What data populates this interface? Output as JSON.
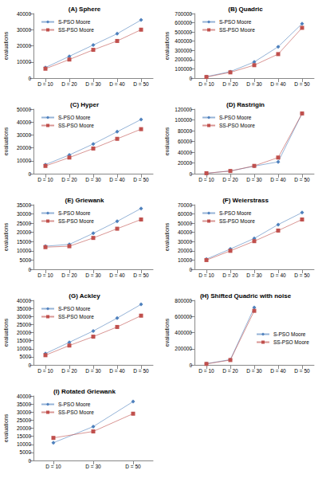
{
  "chart_data": [
    {
      "type": "line",
      "title": "(A) Sphere",
      "ylabel": "evaluations",
      "categories": [
        "D = 10",
        "D = 20",
        "D = 30",
        "D = 40",
        "D = 50"
      ],
      "series": [
        {
          "name": "S-PSO Moore",
          "color": "#4f81bd",
          "marker": "diamond",
          "line_style": "solid",
          "values": [
            6500,
            13500,
            20500,
            27500,
            36000
          ]
        },
        {
          "name": "SS-PSO Moore",
          "color": "#c0504d",
          "marker": "square",
          "line_style": "solid",
          "values": [
            5800,
            11500,
            17500,
            23000,
            30000
          ]
        }
      ],
      "ylim": [
        0,
        40000
      ],
      "yticks": [
        0,
        10000,
        20000,
        30000,
        40000
      ],
      "grid": false,
      "legend": "upper left"
    },
    {
      "type": "line",
      "title": "(B) Quadric",
      "ylabel": "evaluations",
      "categories": [
        "D = 10",
        "D = 20",
        "D = 30",
        "D = 40",
        "D = 50"
      ],
      "series": [
        {
          "name": "S-PSO Moore",
          "color": "#4f81bd",
          "marker": "diamond",
          "line_style": "solid",
          "values": [
            15000,
            70000,
            175000,
            340000,
            590000
          ]
        },
        {
          "name": "SS-PSO Moore",
          "color": "#c0504d",
          "marker": "square",
          "line_style": "solid",
          "values": [
            12000,
            62000,
            140000,
            260000,
            545000
          ]
        }
      ],
      "ylim": [
        0,
        700000
      ],
      "yticks": [
        0,
        100000,
        200000,
        300000,
        400000,
        500000,
        600000,
        700000
      ],
      "grid": false,
      "legend": "upper left"
    },
    {
      "type": "line",
      "title": "(C) Hyper",
      "ylabel": "evaluations",
      "categories": [
        "D = 10",
        "D = 20",
        "D = 30",
        "D = 40",
        "D = 50"
      ],
      "series": [
        {
          "name": "S-PSO Moore",
          "color": "#4f81bd",
          "marker": "diamond",
          "line_style": "solid",
          "values": [
            7000,
            14500,
            23000,
            32500,
            42000
          ]
        },
        {
          "name": "SS-PSO Moore",
          "color": "#c0504d",
          "marker": "square",
          "line_style": "solid",
          "values": [
            6000,
            12500,
            19500,
            27000,
            34500
          ]
        }
      ],
      "ylim": [
        0,
        50000
      ],
      "yticks": [
        0,
        10000,
        20000,
        30000,
        40000,
        50000
      ],
      "grid": false,
      "legend": "upper left"
    },
    {
      "type": "line",
      "title": "(D) Rastrigin",
      "ylabel": "evaluations",
      "categories": [
        "D = 10",
        "D = 20",
        "D = 30",
        "D = 40",
        "D = 50"
      ],
      "series": [
        {
          "name": "S-PSO Moore",
          "color": "#4f81bd",
          "marker": "diamond",
          "line_style": "solid",
          "values": [
            800,
            5000,
            14000,
            22000,
            112000
          ]
        },
        {
          "name": "SS-PSO Moore",
          "color": "#c0504d",
          "marker": "square",
          "line_style": "solid",
          "values": [
            800,
            5000,
            14500,
            30000,
            112000
          ]
        }
      ],
      "ylim": [
        0,
        120000
      ],
      "yticks": [
        0,
        20000,
        40000,
        60000,
        80000,
        100000,
        120000
      ],
      "grid": false,
      "legend": "upper left"
    },
    {
      "type": "line",
      "title": "(E) Griewank",
      "ylabel": "evaluations",
      "categories": [
        "D = 10",
        "D = 20",
        "D = 30",
        "D = 40",
        "D = 50"
      ],
      "series": [
        {
          "name": "S-PSO Moore",
          "color": "#4f81bd",
          "marker": "diamond",
          "line_style": "solid",
          "values": [
            12500,
            13500,
            19500,
            26000,
            33000
          ]
        },
        {
          "name": "SS-PSO Moore",
          "color": "#c0504d",
          "marker": "square",
          "line_style": "solid",
          "values": [
            12000,
            12500,
            17000,
            22000,
            27000
          ]
        }
      ],
      "ylim": [
        0,
        35000
      ],
      "yticks": [
        0,
        5000,
        10000,
        15000,
        20000,
        25000,
        30000,
        35000
      ],
      "grid": false,
      "legend": "upper left"
    },
    {
      "type": "line",
      "title": "(F) Weierstrass",
      "ylabel": "evaluations",
      "categories": [
        "D = 10",
        "D = 20",
        "D = 30",
        "D = 40",
        "D = 50"
      ],
      "series": [
        {
          "name": "S-PSO Moore",
          "color": "#4f81bd",
          "marker": "diamond",
          "line_style": "solid",
          "values": [
            11000,
            22000,
            33500,
            48500,
            61500
          ]
        },
        {
          "name": "SS-PSO Moore",
          "color": "#c0504d",
          "marker": "square",
          "line_style": "solid",
          "values": [
            10000,
            20000,
            30500,
            42000,
            54000
          ]
        }
      ],
      "ylim": [
        0,
        70000
      ],
      "yticks": [
        0,
        10000,
        20000,
        30000,
        40000,
        50000,
        60000,
        70000
      ],
      "grid": false,
      "legend": "upper left"
    },
    {
      "type": "line",
      "title": "(G) Ackley",
      "ylabel": "evaluations",
      "categories": [
        "D = 10",
        "D = 20",
        "D = 30",
        "D = 40",
        "D = 50"
      ],
      "series": [
        {
          "name": "S-PSO Moore",
          "color": "#4f81bd",
          "marker": "diamond",
          "line_style": "solid",
          "values": [
            7000,
            14000,
            21000,
            29000,
            37500
          ]
        },
        {
          "name": "SS-PSO Moore",
          "color": "#c0504d",
          "marker": "square",
          "line_style": "solid",
          "values": [
            6000,
            12000,
            17500,
            23500,
            30500
          ]
        }
      ],
      "ylim": [
        0,
        40000
      ],
      "yticks": [
        0,
        5000,
        10000,
        15000,
        20000,
        25000,
        30000,
        35000,
        40000
      ],
      "grid": false,
      "legend": "upper left"
    },
    {
      "type": "line",
      "title": "(H) Shifted Quadric with noise",
      "ylabel": "evaluations",
      "categories": [
        "D = 10",
        "D = 20",
        "D = 30",
        "D = 40",
        "D = 50"
      ],
      "series": [
        {
          "name": "S-PSO Moore",
          "color": "#4f81bd",
          "marker": "diamond",
          "line_style": "solid",
          "values": [
            15000,
            65000,
            710000,
            null,
            null
          ]
        },
        {
          "name": "SS-PSO Moore",
          "color": "#c0504d",
          "marker": "square",
          "line_style": "solid",
          "values": [
            12000,
            60000,
            670000,
            null,
            null
          ]
        }
      ],
      "ylim": [
        0,
        800000
      ],
      "yticks": [
        0,
        200000,
        400000,
        600000,
        800000
      ],
      "grid": false,
      "legend": "center right"
    },
    {
      "type": "line",
      "title": "(I) Rotated Griewank",
      "ylabel": "evaluations",
      "categories": [
        "D = 10",
        "D = 30",
        "D = 50"
      ],
      "series": [
        {
          "name": "S-PSO Moore",
          "color": "#4f81bd",
          "marker": "diamond",
          "line_style": "solid",
          "values": [
            11000,
            21000,
            36500
          ]
        },
        {
          "name": "SS-PSO Moore",
          "color": "#c0504d",
          "marker": "square",
          "line_style": "solid",
          "values": [
            14000,
            18000,
            29000
          ]
        }
      ],
      "ylim": [
        0,
        40000
      ],
      "yticks": [
        0,
        5000,
        10000,
        15000,
        20000,
        25000,
        30000,
        35000,
        40000
      ],
      "grid": false,
      "legend": "upper left"
    }
  ]
}
